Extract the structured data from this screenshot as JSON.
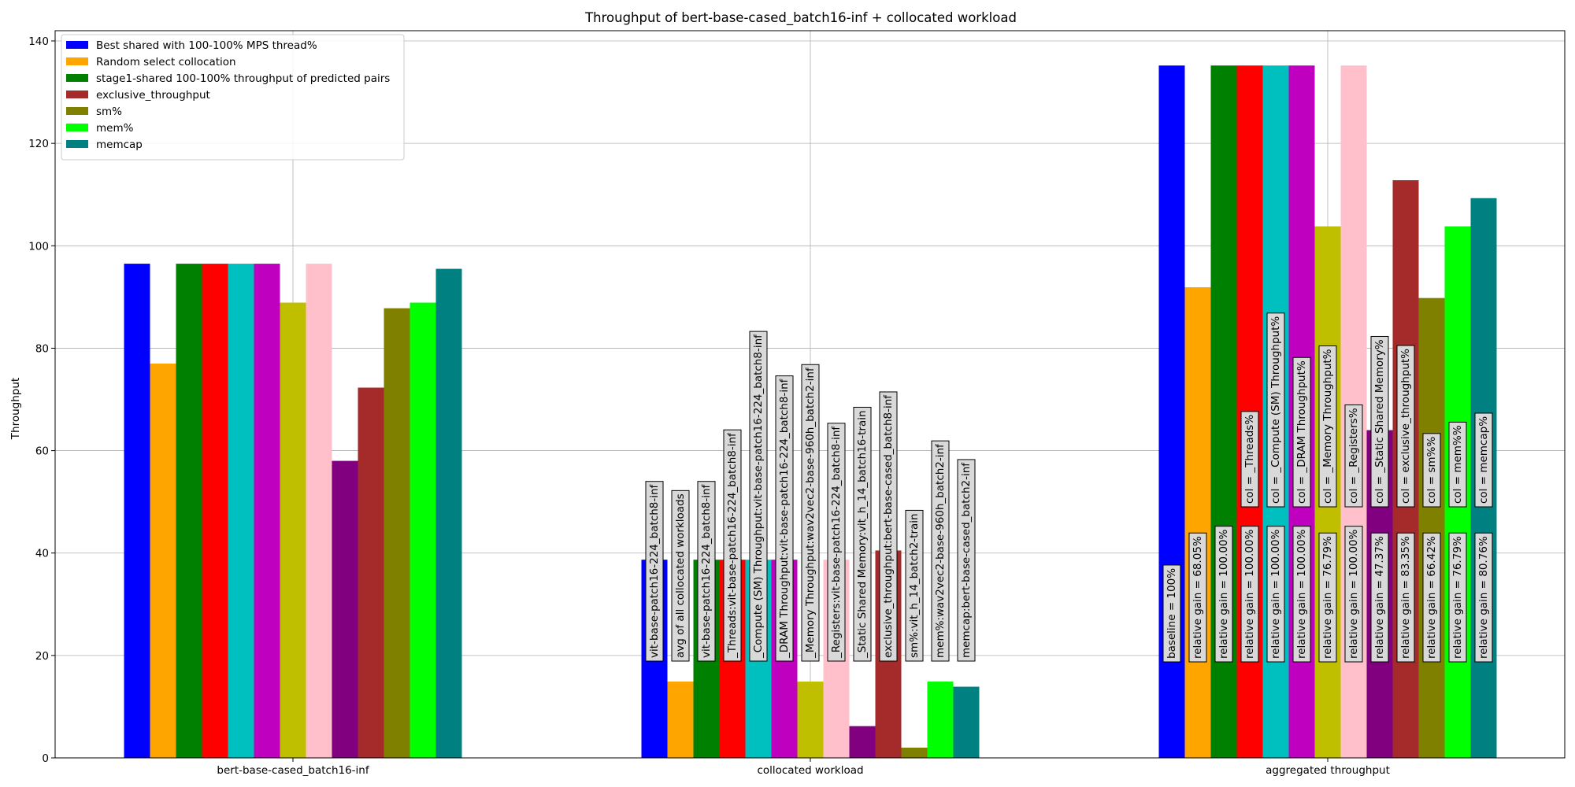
{
  "chart_data": {
    "type": "bar",
    "title": "Throughput of bert-base-cased_batch16-inf + collocated workload",
    "xlabel": "",
    "ylabel": "Throughput",
    "ylim": [
      0,
      142
    ],
    "yticks": [
      0,
      20,
      40,
      60,
      80,
      100,
      120,
      140
    ],
    "grid": true,
    "legend_position": "top-left",
    "categories": [
      "bert-base-cased_batch16-inf",
      "collocated workload",
      "aggregated throughput"
    ],
    "bar_colors": [
      "#0000ff",
      "#ffa500",
      "#008000",
      "#ff0000",
      "#00bfbf",
      "#bf00bf",
      "#bfbf00",
      "#ffc0cb",
      "#800080",
      "#a52a2a",
      "#808000",
      "#00ff00",
      "#008080"
    ],
    "bars": [
      [
        96.5,
        77.0,
        96.5,
        96.5,
        96.5,
        96.5,
        88.9,
        96.5,
        58.0,
        72.3,
        87.8,
        88.9,
        95.5
      ],
      [
        38.7,
        14.9,
        38.7,
        38.7,
        38.7,
        38.7,
        14.9,
        38.7,
        6.2,
        40.5,
        2.0,
        14.9,
        13.9
      ],
      [
        135.2,
        91.9,
        135.2,
        135.2,
        135.2,
        135.2,
        103.8,
        135.2,
        64.0,
        112.8,
        89.8,
        103.8,
        109.3
      ]
    ],
    "legend": [
      {
        "label": "Best shared with 100-100% MPS thread%",
        "color": "#0000ff"
      },
      {
        "label": "Random select collocation",
        "color": "#ffa500"
      },
      {
        "label": "stage1-shared 100-100% throughput of predicted pairs",
        "color": "#008000"
      },
      {
        "label": "exclusive_throughput",
        "color": "#a52a2a"
      },
      {
        "label": "sm%",
        "color": "#808000"
      },
      {
        "label": "mem%",
        "color": "#00ff00"
      },
      {
        "label": "memcap",
        "color": "#008080"
      }
    ],
    "annotations": {
      "collocated": [
        "vit-base-patch16-224_batch8-inf",
        "avg of all collocated workloads",
        "vit-base-patch16-224_batch8-inf",
        "_Threads:vit-base-patch16-224_batch8-inf",
        "_Compute (SM) Throughput:vit-base-patch16-224_batch8-inf",
        "_DRAM Throughput:vit-base-patch16-224_batch8-inf",
        "_Memory Throughput:wav2vec2-base-960h_batch2-inf",
        "_Registers:vit-base-patch16-224_batch8-inf",
        "_Static Shared Memory:vit_h_14_batch16-train",
        "exclusive_throughput:bert-base-cased_batch8-inf",
        "sm%:vit_h_14_batch2-train",
        "mem%:wav2vec2-base-960h_batch2-inf",
        "memcap:bert-base-cased_batch2-inf"
      ],
      "aggregated_gain": [
        "baseline = 100%",
        "relative gain = 68.05%",
        "relative gain = 100.00%",
        "relative gain = 100.00%",
        "relative gain = 100.00%",
        "relative gain = 100.00%",
        "relative gain = 76.79%",
        "relative gain = 100.00%",
        "relative gain = 47.37%",
        "relative gain = 83.35%",
        "relative gain = 66.42%",
        "relative gain = 76.79%",
        "relative gain = 80.76%"
      ],
      "aggregated_col": [
        "",
        "",
        "",
        "col = _Threads%",
        "col = _Compute (SM) Throughput%",
        "col = _DRAM Throughput%",
        "col = _Memory Throughput%",
        "col = _Registers%",
        "col = _Static Shared Memory%",
        "col = exclusive_throughput%",
        "col = sm%%",
        "col = mem%%",
        "col = memcap%"
      ]
    }
  }
}
